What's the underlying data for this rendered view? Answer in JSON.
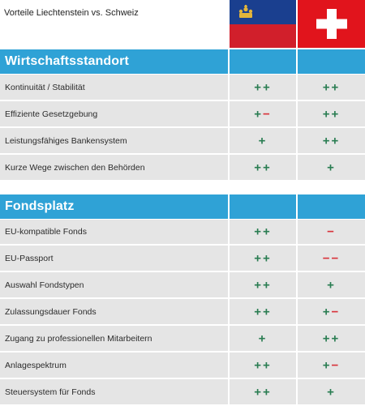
{
  "header": {
    "title": "Vorteile Liechtenstein vs. Schweiz",
    "flags": [
      "liechtenstein-flag",
      "switzerland-flag"
    ]
  },
  "colors": {
    "section_header": "#2fa2d6",
    "row_bg": "#e5e5e5",
    "plus": "#2a7d52",
    "minus": "#d8333b"
  },
  "sections": [
    {
      "title": "Wirtschaftsstandort",
      "rows": [
        {
          "label": "Kontinuität / Stabilität",
          "li": "++",
          "ch": "++"
        },
        {
          "label": "Effiziente Gesetzgebung",
          "li": "+−",
          "ch": "++"
        },
        {
          "label": "Leistungsfähiges Bankensystem",
          "li": "+",
          "ch": "++"
        },
        {
          "label": "Kurze Wege zwischen den Behörden",
          "li": "++",
          "ch": "+"
        }
      ]
    },
    {
      "title": "Fondsplatz",
      "rows": [
        {
          "label": "EU-kompatible Fonds",
          "li": "++",
          "ch": "−"
        },
        {
          "label": "EU-Passport",
          "li": "++",
          "ch": "−−"
        },
        {
          "label": "Auswahl Fondstypen",
          "li": "++",
          "ch": "+"
        },
        {
          "label": "Zulassungsdauer Fonds",
          "li": "++",
          "ch": "+−"
        },
        {
          "label": "Zugang zu professionellen Mitarbeitern",
          "li": "+",
          "ch": "++"
        },
        {
          "label": "Anlagespektrum",
          "li": "++",
          "ch": "+−"
        },
        {
          "label": "Steuersystem für Fonds",
          "li": "++",
          "ch": "+"
        }
      ]
    }
  ]
}
